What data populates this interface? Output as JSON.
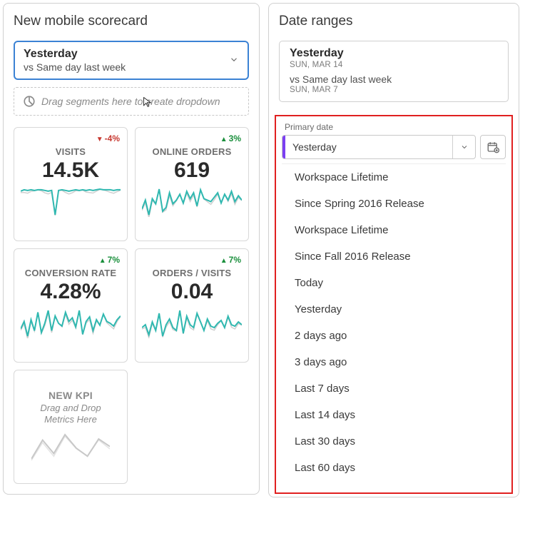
{
  "colors": {
    "panel_border": "#d0d0d0",
    "selector_border": "#3b82d4",
    "accent_purple": "#7b3ff2",
    "highlight_red": "#e02020",
    "spark_color": "#2fb8b0",
    "spark_shadow": "#cfd0d0",
    "delta_up": "#1a8f3c",
    "delta_down": "#c7372f",
    "text_muted": "#6f6f6f",
    "background": "#ffffff"
  },
  "left": {
    "title": "New mobile scorecard",
    "selector": {
      "primary": "Yesterday",
      "secondary": "vs Same day last week"
    },
    "drag_hint": "Drag segments here to create dropdown",
    "tiles": [
      {
        "id": "visits",
        "label": "VISITS",
        "value": "14.5K",
        "delta_text": "-4%",
        "delta_dir": "down",
        "spark": [
          76,
          78,
          77,
          78,
          77,
          78,
          78,
          77,
          76,
          77,
          40,
          77,
          78,
          77,
          76,
          77,
          78,
          77,
          78,
          77,
          78,
          77,
          78,
          79,
          78,
          78,
          78,
          77,
          78,
          78
        ]
      },
      {
        "id": "online-orders",
        "label": "ONLINE ORDERS",
        "value": "619",
        "delta_text": "3%",
        "delta_dir": "up",
        "spark": [
          48,
          60,
          40,
          62,
          55,
          75,
          45,
          50,
          70,
          55,
          60,
          68,
          56,
          72,
          62,
          70,
          52,
          74,
          62,
          60,
          58,
          64,
          70,
          56,
          68,
          60,
          72,
          58,
          66,
          60
        ]
      },
      {
        "id": "conversion-rate",
        "label": "CONVERSION RATE",
        "value": "4.28%",
        "delta_text": "7%",
        "delta_dir": "up",
        "spark": [
          52,
          60,
          44,
          62,
          50,
          70,
          48,
          58,
          72,
          50,
          66,
          58,
          55,
          70,
          60,
          64,
          54,
          72,
          46,
          60,
          65,
          50,
          62,
          56,
          68,
          60,
          58,
          55,
          62,
          66
        ]
      },
      {
        "id": "orders-visits",
        "label": "ORDERS / VISITS",
        "value": "0.04",
        "delta_text": "7%",
        "delta_dir": "up",
        "spark": [
          60,
          62,
          55,
          64,
          58,
          70,
          54,
          62,
          66,
          60,
          58,
          72,
          56,
          68,
          62,
          60,
          70,
          64,
          58,
          66,
          61,
          60,
          63,
          65,
          60,
          68,
          62,
          61,
          64,
          62
        ]
      }
    ],
    "new_kpi": {
      "title": "NEW KPI",
      "subtitle_line1": "Drag and Drop",
      "subtitle_line2": "Metrics Here",
      "spark": [
        35,
        70,
        45,
        80,
        55,
        40,
        72,
        58
      ]
    }
  },
  "right": {
    "title": "Date ranges",
    "range": {
      "primary": "Yesterday",
      "primary_date": "SUN, MAR 14",
      "vs_text": "vs Same day last week",
      "vs_date": "SUN, MAR 7"
    },
    "field_label": "Primary date",
    "dd_value": "Yesterday",
    "options": [
      "Workspace Lifetime",
      "Since Spring 2016 Release",
      "Workspace Lifetime",
      "Since Fall 2016 Release",
      "Today",
      "Yesterday",
      "2 days ago",
      "3 days ago",
      "Last 7 days",
      "Last 14 days",
      "Last 30 days",
      "Last 60 days"
    ]
  }
}
